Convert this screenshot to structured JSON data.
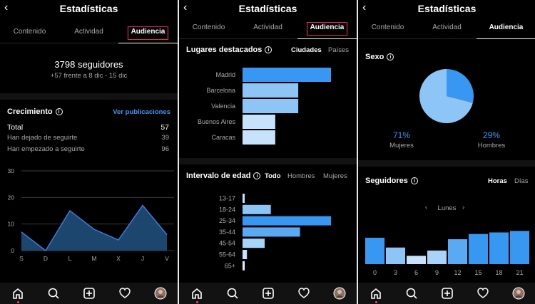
{
  "screen_title": "Estadísticas",
  "tabs": [
    "Contenido",
    "Actividad",
    "Audiencia"
  ],
  "panel1": {
    "followers": "3798 seguidores",
    "change": "+57 frente a 8 dic - 15 dic",
    "growth_title": "Crecimiento",
    "view_posts": "Ver publicaciones",
    "rows": [
      {
        "label": "Total",
        "value": "57"
      },
      {
        "label": "Han dejado de seguirte",
        "value": "39"
      },
      {
        "label": "Han empezado a seguirte",
        "value": "96"
      }
    ],
    "chart_data": {
      "type": "area",
      "categories": [
        "S",
        "D",
        "L",
        "M",
        "X",
        "J",
        "V"
      ],
      "values": [
        7,
        0,
        15,
        8,
        4,
        17,
        6
      ],
      "yticks": [
        "0",
        "10",
        "20",
        "30"
      ],
      "ylim": [
        0,
        30
      ],
      "color": "#1f4e79",
      "line_color": "#3a7bd5"
    }
  },
  "panel2": {
    "places_title": "Lugares destacados",
    "place_options": [
      "Ciudades",
      "Países"
    ],
    "places_chart": {
      "type": "bar",
      "categories": [
        "Madrid",
        "Barcelona",
        "Valencia",
        "Buenos Aires",
        "Caracas"
      ],
      "values": [
        100,
        63,
        63,
        37,
        37
      ],
      "colors": [
        "#3897f0",
        "#8ec5f7",
        "#8ec5f7",
        "#c7e2fb",
        "#c7e2fb"
      ]
    },
    "age_title": "Intervalo de edad",
    "age_options": [
      "Todo",
      "Hombres",
      "Mujeres"
    ],
    "age_chart": {
      "type": "bar",
      "categories": [
        "13-17",
        "18-24",
        "25-34",
        "35-44",
        "45-54",
        "55-64",
        "65+"
      ],
      "values": [
        2,
        32,
        100,
        65,
        25,
        5,
        2
      ],
      "colors": [
        "#c7e2fb",
        "#8ec5f7",
        "#3897f0",
        "#5aaaf3",
        "#a9d3f9",
        "#c7e2fb",
        "#e3f0fd"
      ]
    }
  },
  "panel3": {
    "sex_title": "Sexo",
    "sex_chart": {
      "type": "pie",
      "categories": [
        "Mujeres",
        "Hombres"
      ],
      "values": [
        71,
        29
      ],
      "labels": [
        "71%",
        "29%"
      ],
      "colors": [
        "#8ec5f7",
        "#3897f0"
      ]
    },
    "followers_title": "Seguidores",
    "time_options": [
      "Horas",
      "Días"
    ],
    "day": "Lunes",
    "hours_chart": {
      "type": "bar",
      "categories": [
        "0",
        "3",
        "6",
        "9",
        "12",
        "15",
        "18",
        "21"
      ],
      "values": [
        35,
        22,
        11,
        18,
        33,
        40,
        42,
        44
      ],
      "colors": [
        "#3897f0",
        "#8ec5f7",
        "#c7e2fb",
        "#a9d3f9",
        "#5aaaf3",
        "#3897f0",
        "#3897f0",
        "#3897f0"
      ]
    }
  }
}
